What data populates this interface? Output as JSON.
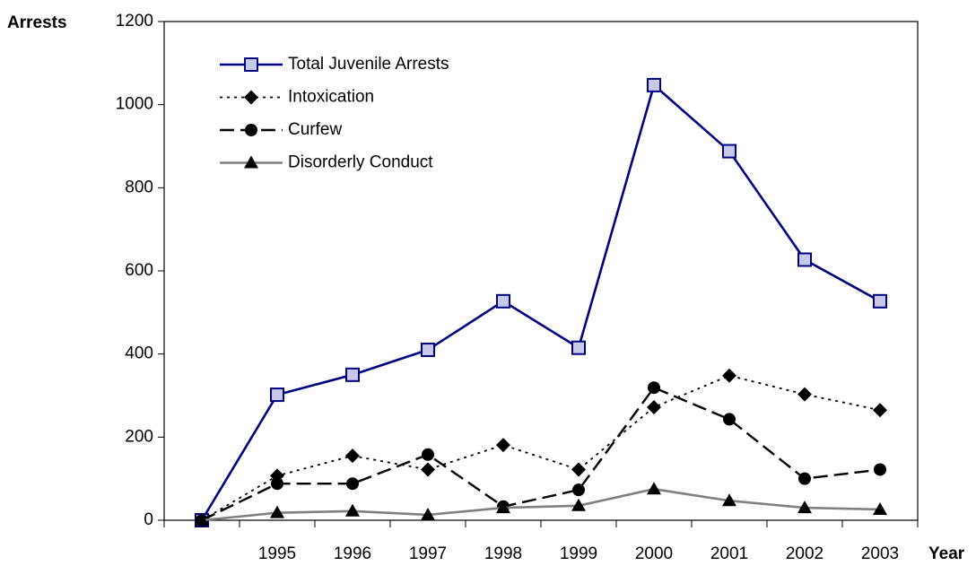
{
  "chart_data": {
    "type": "line",
    "ylabel": "Arrests",
    "xlabel": "Year",
    "categories": [
      null,
      "1995",
      "1996",
      "1997",
      "1998",
      "1999",
      "2000",
      "2001",
      "2002",
      "2003"
    ],
    "series": [
      {
        "name": "Total Juvenile Arrests",
        "color": "#000080",
        "dash": "solid",
        "marker": "square",
        "values": [
          0,
          302,
          350,
          410,
          527,
          415,
          1047,
          888,
          627,
          527
        ]
      },
      {
        "name": "Intoxication",
        "color": "#000000",
        "dash": "dotted",
        "marker": "diamond",
        "values": [
          0,
          107,
          155,
          122,
          181,
          122,
          272,
          348,
          303,
          265
        ]
      },
      {
        "name": "Curfew",
        "color": "#000000",
        "dash": "dashed",
        "marker": "circle",
        "values": [
          0,
          88,
          88,
          158,
          33,
          73,
          319,
          243,
          100,
          122
        ]
      },
      {
        "name": "Disorderly Conduct",
        "color": "#808080",
        "dash": "solid",
        "marker": "triangle",
        "values": [
          0,
          18,
          22,
          13,
          30,
          35,
          75,
          47,
          30,
          26
        ]
      }
    ],
    "ylim": [
      0,
      1200
    ],
    "yticks": [
      0,
      200,
      400,
      600,
      800,
      1000,
      1200
    ],
    "grid": false,
    "legend": "upper-left"
  }
}
